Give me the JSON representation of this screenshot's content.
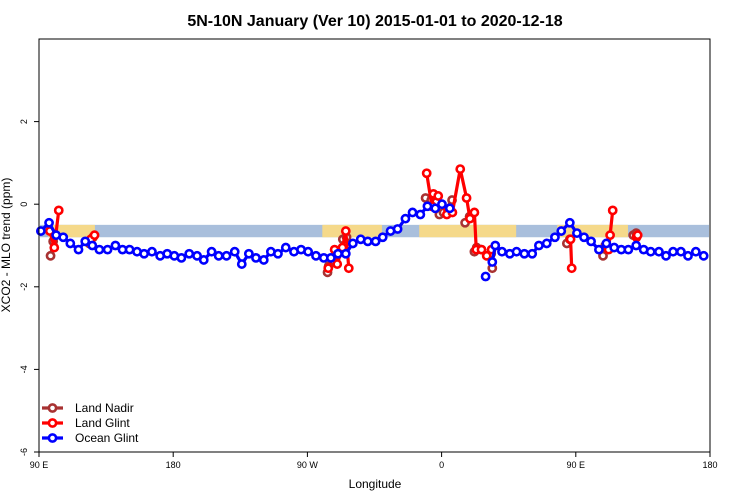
{
  "chart_data": {
    "type": "line",
    "title": "5N-10N January (Ver 10)   2015-01-01 to 2020-12-18",
    "xlabel": "Longitude",
    "ylabel": "XCO2 - MLO trend (ppm)",
    "xlim": [
      90,
      270
    ],
    "ylim": [
      -6,
      4
    ],
    "x_ticks": [
      {
        "value": 90,
        "label": "90 E"
      },
      {
        "value": 126,
        "label": "180"
      },
      {
        "value": 162,
        "label": "90 W"
      },
      {
        "value": 198,
        "label": "0"
      },
      {
        "value": 234,
        "label": "90 E"
      },
      {
        "value": 270,
        "label": "180"
      }
    ],
    "y_ticks": [
      -6,
      -4,
      -2,
      0,
      2
    ],
    "grid": false,
    "legend_position": "bottom-left",
    "band": {
      "y_range": [
        -0.8,
        -0.5
      ],
      "color": "#a9bfdc",
      "land_color": "#f5d98a"
    },
    "land_spans": [
      [
        92.5,
        105
      ],
      [
        166,
        182
      ],
      [
        192,
        218
      ],
      [
        229,
        248
      ]
    ],
    "series": [
      {
        "name": "Land Nadir",
        "color": "#a83232",
        "segments": [
          [
            [
              93.1,
              -1.25
            ],
            [
              93.8,
              -0.9
            ],
            [
              94.3,
              -0.75
            ]
          ],
          [
            [
              103.5,
              -0.95
            ],
            [
              104.5,
              -0.8
            ]
          ],
          [
            [
              167.4,
              -1.65
            ],
            [
              167.7,
              -1.5
            ]
          ],
          [
            [
              171.5,
              -0.85
            ],
            [
              172.5,
              -0.8
            ]
          ],
          [
            [
              193.7,
              0.15
            ],
            [
              195.2,
              0.1
            ],
            [
              196.5,
              0.05
            ],
            [
              197.4,
              -0.25
            ],
            [
              198.5,
              -0.2
            ],
            [
              200.8,
              0.1
            ]
          ],
          [
            [
              204.3,
              -0.45
            ],
            [
              205.5,
              -0.3
            ]
          ],
          [
            [
              206.8,
              -1.15
            ],
            [
              207.4,
              -1.05
            ],
            [
              208.7,
              -1.1
            ]
          ],
          [
            [
              211.6,
              -1.55
            ],
            [
              211.3,
              -1.2
            ]
          ],
          [
            [
              231.6,
              -0.95
            ],
            [
              232.4,
              -0.85
            ]
          ],
          [
            [
              241.3,
              -1.25
            ],
            [
              241.9,
              -1.0
            ]
          ],
          [
            [
              249.4,
              -0.75
            ],
            [
              250.2,
              -0.7
            ]
          ]
        ]
      },
      {
        "name": "Land Glint",
        "color": "#ff0000",
        "segments": [
          [
            [
              92.9,
              -0.65
            ],
            [
              94.1,
              -1.05
            ],
            [
              95.3,
              -0.15
            ]
          ],
          [
            [
              103.9,
              -0.85
            ],
            [
              104.9,
              -0.75
            ]
          ],
          [
            [
              167.6,
              -1.55
            ],
            [
              169.3,
              -1.1
            ],
            [
              170.0,
              -1.45
            ],
            [
              171.4,
              -1.05
            ],
            [
              172.3,
              -0.65
            ],
            [
              173.1,
              -1.55
            ]
          ],
          [
            [
              194.0,
              0.75
            ],
            [
              195.4,
              -0.05
            ],
            [
              195.8,
              0.25
            ],
            [
              197.1,
              0.2
            ],
            [
              199.4,
              -0.25
            ],
            [
              200.9,
              -0.2
            ],
            [
              203.0,
              0.85
            ],
            [
              204.7,
              0.15
            ],
            [
              205.6,
              -0.35
            ],
            [
              206.8,
              -0.2
            ],
            [
              207.3,
              -1.1
            ],
            [
              208.7,
              -1.1
            ],
            [
              210.1,
              -1.25
            ],
            [
              211.4,
              -1.1
            ]
          ],
          [
            [
              232.9,
              -1.55
            ],
            [
              232.6,
              -0.85
            ]
          ],
          [
            [
              242.8,
              -1.1
            ],
            [
              243.2,
              -0.75
            ],
            [
              243.9,
              -0.15
            ]
          ],
          [
            [
              250.3,
              -0.8
            ],
            [
              250.6,
              -0.75
            ]
          ]
        ]
      },
      {
        "name": "Ocean Glint",
        "color": "#0000ff",
        "segments": [
          [
            [
              90.5,
              -0.65
            ],
            [
              92.7,
              -0.45
            ],
            [
              94.6,
              -0.75
            ],
            [
              96.5,
              -0.8
            ],
            [
              98.4,
              -0.95
            ],
            [
              100.6,
              -1.1
            ],
            [
              102.4,
              -0.9
            ],
            [
              104.3,
              -1.0
            ],
            [
              106.2,
              -1.1
            ],
            [
              108.4,
              -1.1
            ],
            [
              110.5,
              -1.0
            ],
            [
              112.4,
              -1.1
            ],
            [
              114.3,
              -1.1
            ],
            [
              116.3,
              -1.15
            ],
            [
              118.2,
              -1.2
            ],
            [
              120.3,
              -1.15
            ],
            [
              122.5,
              -1.25
            ],
            [
              124.4,
              -1.2
            ],
            [
              126.3,
              -1.25
            ],
            [
              128.2,
              -1.3
            ],
            [
              130.3,
              -1.2
            ],
            [
              132.4,
              -1.25
            ],
            [
              134.2,
              -1.35
            ],
            [
              136.3,
              -1.15
            ],
            [
              138.2,
              -1.25
            ],
            [
              140.3,
              -1.25
            ],
            [
              142.5,
              -1.15
            ],
            [
              144.4,
              -1.45
            ],
            [
              146.3,
              -1.2
            ],
            [
              148.2,
              -1.3
            ],
            [
              150.3,
              -1.35
            ],
            [
              152.2,
              -1.15
            ],
            [
              154.1,
              -1.2
            ],
            [
              156.2,
              -1.05
            ],
            [
              158.4,
              -1.15
            ],
            [
              160.3,
              -1.1
            ],
            [
              162.2,
              -1.15
            ],
            [
              164.3,
              -1.25
            ],
            [
              166.4,
              -1.3
            ],
            [
              168.3,
              -1.3
            ],
            [
              170.2,
              -1.2
            ],
            [
              172.3,
              -1.2
            ],
            [
              174.2,
              -0.95
            ],
            [
              176.3,
              -0.85
            ],
            [
              178.2,
              -0.9
            ],
            [
              180.3,
              -0.9
            ],
            [
              182.2,
              -0.8
            ],
            [
              184.3,
              -0.65
            ],
            [
              186.2,
              -0.6
            ],
            [
              188.3,
              -0.35
            ],
            [
              190.2,
              -0.2
            ],
            [
              192.3,
              -0.25
            ],
            [
              194.2,
              -0.05
            ],
            [
              196.3,
              -0.1
            ],
            [
              198.1,
              0.0
            ],
            [
              200.2,
              -0.1
            ]
          ],
          [
            [
              209.8,
              -1.75
            ]
          ],
          [
            [
              211.6,
              -1.4
            ],
            [
              212.4,
              -1.0
            ],
            [
              214.2,
              -1.15
            ],
            [
              216.3,
              -1.2
            ],
            [
              218.1,
              -1.15
            ],
            [
              220.2,
              -1.2
            ],
            [
              222.3,
              -1.2
            ],
            [
              224.1,
              -1.0
            ],
            [
              226.2,
              -0.95
            ],
            [
              228.4,
              -0.8
            ],
            [
              230.1,
              -0.65
            ],
            [
              232.4,
              -0.45
            ],
            [
              234.3,
              -0.7
            ],
            [
              236.2,
              -0.8
            ],
            [
              238.1,
              -0.9
            ],
            [
              240.2,
              -1.1
            ],
            [
              242.2,
              -0.95
            ],
            [
              244.3,
              -1.05
            ],
            [
              246.2,
              -1.1
            ],
            [
              248.1,
              -1.1
            ],
            [
              250.2,
              -1.0
            ],
            [
              252.2,
              -1.1
            ],
            [
              254.1,
              -1.15
            ],
            [
              256.3,
              -1.15
            ],
            [
              258.2,
              -1.25
            ],
            [
              260.1,
              -1.15
            ],
            [
              262.2,
              -1.15
            ],
            [
              264.1,
              -1.25
            ],
            [
              266.2,
              -1.15
            ],
            [
              268.3,
              -1.25
            ]
          ]
        ]
      }
    ],
    "legend_order": [
      "Land Nadir",
      "Land Glint",
      "Ocean Glint"
    ]
  }
}
